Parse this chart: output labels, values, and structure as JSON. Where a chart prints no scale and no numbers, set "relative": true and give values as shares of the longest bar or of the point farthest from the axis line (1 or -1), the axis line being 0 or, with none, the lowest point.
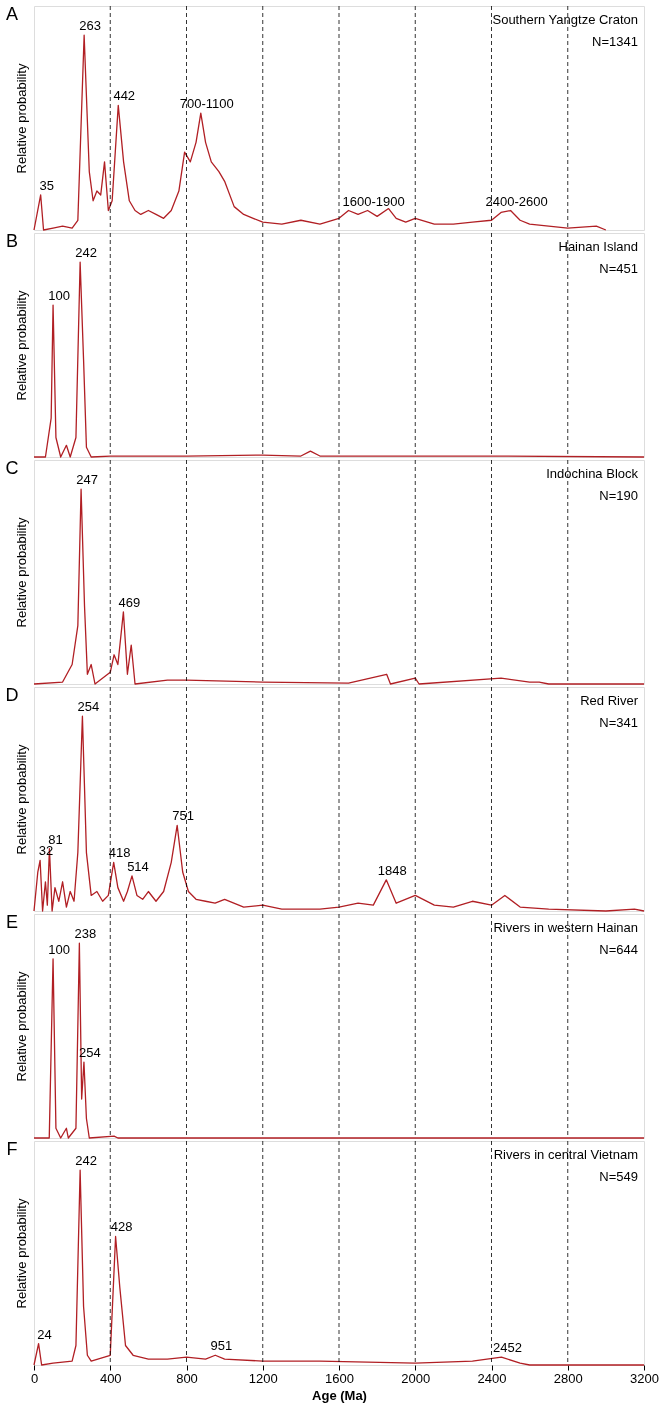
{
  "chart_data": [
    {
      "type": "line",
      "title": "A",
      "ylabel": "Relative probability",
      "relative": true,
      "tick_labels": false,
      "xlim": [
        0,
        3200
      ],
      "x": [
        0,
        35,
        50,
        100,
        150,
        200,
        230,
        263,
        290,
        310,
        330,
        350,
        370,
        390,
        410,
        442,
        470,
        500,
        530,
        560,
        600,
        640,
        680,
        720,
        760,
        790,
        820,
        850,
        875,
        900,
        930,
        970,
        1000,
        1050,
        1100,
        1150,
        1200,
        1300,
        1400,
        1500,
        1600,
        1650,
        1700,
        1750,
        1800,
        1860,
        1900,
        1950,
        2000,
        2100,
        2200,
        2300,
        2400,
        2450,
        2500,
        2550,
        2600,
        2700,
        2800,
        2950,
        3000
      ],
      "series": [
        {
          "color": "#b11f24",
          "values": [
            0,
            0.18,
            0,
            0.01,
            0.02,
            0.01,
            0.05,
            1,
            0.3,
            0.15,
            0.2,
            0.18,
            0.35,
            0.1,
            0.15,
            0.64,
            0.35,
            0.15,
            0.1,
            0.08,
            0.1,
            0.08,
            0.06,
            0.1,
            0.2,
            0.4,
            0.35,
            0.45,
            0.6,
            0.45,
            0.35,
            0.3,
            0.25,
            0.12,
            0.08,
            0.06,
            0.04,
            0.03,
            0.05,
            0.03,
            0.06,
            0.1,
            0.08,
            0.1,
            0.07,
            0.11,
            0.06,
            0.04,
            0.06,
            0.03,
            0.03,
            0.04,
            0.05,
            0.09,
            0.1,
            0.05,
            0.03,
            0.02,
            0.01,
            0.02,
            0
          ]
        }
      ],
      "ref_lines": [
        {
          "axis": "x",
          "value": 400,
          "line_style": "dashed",
          "color": "#000000"
        },
        {
          "axis": "x",
          "value": 800,
          "line_style": "dashed",
          "color": "#000000"
        },
        {
          "axis": "x",
          "value": 1200,
          "line_style": "dashed",
          "color": "#000000"
        },
        {
          "axis": "x",
          "value": 1600,
          "line_style": "dashed",
          "color": "#000000"
        },
        {
          "axis": "x",
          "value": 2000,
          "line_style": "dashed",
          "color": "#000000"
        },
        {
          "axis": "x",
          "value": 2400,
          "line_style": "dashed",
          "color": "#000000"
        },
        {
          "axis": "x",
          "value": 2800,
          "line_style": "dashed",
          "color": "#000000"
        }
      ],
      "annotations": [
        {
          "text": "35",
          "x": 35,
          "y": 0.18
        },
        {
          "text": "263",
          "x": 263,
          "y": 1
        },
        {
          "text": "442",
          "x": 442,
          "y": 0.64
        },
        {
          "text": "700-1100",
          "x": 875,
          "y": 0.6
        },
        {
          "text": "1600-1900",
          "x": 1750,
          "y": 0.1
        },
        {
          "text": "2400-2600",
          "x": 2500,
          "y": 0.1
        },
        "Southern Yangtze Craton",
        "N=1341"
      ]
    },
    {
      "type": "line",
      "title": "B",
      "ylabel": "Relative probability",
      "relative": true,
      "tick_labels": false,
      "xlim": [
        0,
        3200
      ],
      "x": [
        0,
        60,
        90,
        100,
        115,
        140,
        170,
        190,
        220,
        242,
        260,
        275,
        300,
        400,
        800,
        1200,
        1400,
        1450,
        1500,
        1700,
        2000,
        2400,
        3200
      ],
      "series": [
        {
          "color": "#b11f24",
          "values": [
            0,
            0,
            0.2,
            0.78,
            0.1,
            0,
            0.06,
            0,
            0.1,
            1,
            0.5,
            0.05,
            0,
            0.005,
            0.005,
            0.01,
            0.005,
            0.03,
            0.005,
            0.005,
            0.005,
            0.005,
            0
          ]
        }
      ],
      "ref_lines": [
        {
          "axis": "x",
          "value": 400,
          "line_style": "dashed",
          "color": "#000000"
        },
        {
          "axis": "x",
          "value": 800,
          "line_style": "dashed",
          "color": "#000000"
        },
        {
          "axis": "x",
          "value": 1200,
          "line_style": "dashed",
          "color": "#000000"
        },
        {
          "axis": "x",
          "value": 1600,
          "line_style": "dashed",
          "color": "#000000"
        },
        {
          "axis": "x",
          "value": 2000,
          "line_style": "dashed",
          "color": "#000000"
        },
        {
          "axis": "x",
          "value": 2400,
          "line_style": "dashed",
          "color": "#000000"
        },
        {
          "axis": "x",
          "value": 2800,
          "line_style": "dashed",
          "color": "#000000"
        }
      ],
      "annotations": [
        {
          "text": "100",
          "x": 100,
          "y": 0.78
        },
        {
          "text": "242",
          "x": 242,
          "y": 1
        },
        "Hainan Island",
        "N=451"
      ]
    },
    {
      "type": "line",
      "title": "C",
      "ylabel": "Relative probability",
      "relative": true,
      "tick_labels": false,
      "xlim": [
        0,
        3200
      ],
      "x": [
        0,
        150,
        200,
        230,
        247,
        265,
        280,
        300,
        320,
        400,
        420,
        440,
        469,
        490,
        510,
        530,
        700,
        800,
        1200,
        1650,
        1850,
        1870,
        2000,
        2020,
        2450,
        2600,
        2650,
        2700,
        3200
      ],
      "series": [
        {
          "color": "#b11f24",
          "values": [
            0,
            0.01,
            0.1,
            0.3,
            1,
            0.4,
            0.05,
            0.1,
            0,
            0.06,
            0.15,
            0.1,
            0.37,
            0.05,
            0.2,
            0,
            0.02,
            0.02,
            0.01,
            0.005,
            0.05,
            0,
            0.03,
            0,
            0.03,
            0.01,
            0.01,
            0,
            0
          ]
        }
      ],
      "ref_lines": [
        {
          "axis": "x",
          "value": 400,
          "line_style": "dashed",
          "color": "#000000"
        },
        {
          "axis": "x",
          "value": 800,
          "line_style": "dashed",
          "color": "#000000"
        },
        {
          "axis": "x",
          "value": 1200,
          "line_style": "dashed",
          "color": "#000000"
        },
        {
          "axis": "x",
          "value": 1600,
          "line_style": "dashed",
          "color": "#000000"
        },
        {
          "axis": "x",
          "value": 2000,
          "line_style": "dashed",
          "color": "#000000"
        },
        {
          "axis": "x",
          "value": 2400,
          "line_style": "dashed",
          "color": "#000000"
        },
        {
          "axis": "x",
          "value": 2800,
          "line_style": "dashed",
          "color": "#000000"
        }
      ],
      "annotations": [
        {
          "text": "247",
          "x": 247,
          "y": 1
        },
        {
          "text": "469",
          "x": 469,
          "y": 0.37
        },
        "Indochina Block",
        "N=190"
      ]
    },
    {
      "type": "line",
      "title": "D",
      "ylabel": "Relative probability",
      "relative": true,
      "tick_labels": false,
      "xlim": [
        0,
        3200
      ],
      "x": [
        0,
        20,
        32,
        45,
        60,
        70,
        81,
        95,
        110,
        130,
        150,
        170,
        190,
        210,
        230,
        254,
        275,
        300,
        330,
        360,
        390,
        418,
        440,
        470,
        490,
        514,
        540,
        570,
        600,
        640,
        680,
        720,
        751,
        780,
        810,
        850,
        900,
        950,
        1000,
        1100,
        1200,
        1300,
        1500,
        1600,
        1700,
        1780,
        1848,
        1900,
        2000,
        2100,
        2200,
        2300,
        2400,
        2470,
        2550,
        2700,
        3000,
        3150,
        3200
      ],
      "series": [
        {
          "color": "#b11f24",
          "values": [
            0,
            0.2,
            0.26,
            0,
            0.15,
            0.03,
            0.32,
            0,
            0.12,
            0.05,
            0.15,
            0.02,
            0.1,
            0.05,
            0.3,
            1,
            0.3,
            0.08,
            0.1,
            0.05,
            0.08,
            0.25,
            0.12,
            0.05,
            0.1,
            0.18,
            0.08,
            0.06,
            0.1,
            0.05,
            0.1,
            0.25,
            0.44,
            0.2,
            0.1,
            0.06,
            0.05,
            0.04,
            0.06,
            0.02,
            0.03,
            0.01,
            0.01,
            0.02,
            0.04,
            0.03,
            0.16,
            0.04,
            0.08,
            0.03,
            0.02,
            0.05,
            0.03,
            0.08,
            0.02,
            0.01,
            0,
            0.01,
            0
          ]
        }
      ],
      "ref_lines": [
        {
          "axis": "x",
          "value": 400,
          "line_style": "dashed",
          "color": "#000000"
        },
        {
          "axis": "x",
          "value": 800,
          "line_style": "dashed",
          "color": "#000000"
        },
        {
          "axis": "x",
          "value": 1200,
          "line_style": "dashed",
          "color": "#000000"
        },
        {
          "axis": "x",
          "value": 1600,
          "line_style": "dashed",
          "color": "#000000"
        },
        {
          "axis": "x",
          "value": 2000,
          "line_style": "dashed",
          "color": "#000000"
        },
        {
          "axis": "x",
          "value": 2400,
          "line_style": "dashed",
          "color": "#000000"
        },
        {
          "axis": "x",
          "value": 2800,
          "line_style": "dashed",
          "color": "#000000"
        }
      ],
      "annotations": [
        {
          "text": "32",
          "x": 32,
          "y": 0.26
        },
        {
          "text": "81",
          "x": 81,
          "y": 0.32
        },
        {
          "text": "254",
          "x": 254,
          "y": 1
        },
        {
          "text": "418",
          "x": 418,
          "y": 0.25
        },
        {
          "text": "514",
          "x": 514,
          "y": 0.18
        },
        {
          "text": "751",
          "x": 751,
          "y": 0.44
        },
        {
          "text": "1848",
          "x": 1848,
          "y": 0.16
        },
        "Red River",
        "N=341"
      ]
    },
    {
      "type": "line",
      "title": "E",
      "ylabel": "Relative probability",
      "relative": true,
      "tick_labels": false,
      "xlim": [
        0,
        3200
      ],
      "x": [
        0,
        80,
        100,
        115,
        140,
        170,
        180,
        220,
        238,
        250,
        262,
        275,
        290,
        420,
        440,
        3200
      ],
      "series": [
        {
          "color": "#b11f24",
          "values": [
            0,
            0,
            0.92,
            0.05,
            0,
            0.05,
            0,
            0.05,
            1,
            0.2,
            0.39,
            0.1,
            0,
            0.01,
            0,
            0
          ]
        }
      ],
      "ref_lines": [
        {
          "axis": "x",
          "value": 400,
          "line_style": "dashed",
          "color": "#000000"
        },
        {
          "axis": "x",
          "value": 800,
          "line_style": "dashed",
          "color": "#000000"
        },
        {
          "axis": "x",
          "value": 1200,
          "line_style": "dashed",
          "color": "#000000"
        },
        {
          "axis": "x",
          "value": 1600,
          "line_style": "dashed",
          "color": "#000000"
        },
        {
          "axis": "x",
          "value": 2000,
          "line_style": "dashed",
          "color": "#000000"
        },
        {
          "axis": "x",
          "value": 2400,
          "line_style": "dashed",
          "color": "#000000"
        },
        {
          "axis": "x",
          "value": 2800,
          "line_style": "dashed",
          "color": "#000000"
        }
      ],
      "annotations": [
        {
          "text": "100",
          "x": 100,
          "y": 0.92
        },
        {
          "text": "238",
          "x": 238,
          "y": 1
        },
        {
          "text": "254",
          "x": 262,
          "y": 0.39
        },
        "Rivers in western Hainan",
        "N=644"
      ]
    },
    {
      "type": "line",
      "title": "F",
      "ylabel": "Relative probability",
      "xlabel": "Age (Ma)",
      "relative": true,
      "tick_labels": "x",
      "xlim": [
        0,
        3200
      ],
      "xticks": [
        0,
        400,
        800,
        1200,
        1600,
        2000,
        2400,
        2800,
        3200
      ],
      "x": [
        0,
        24,
        40,
        100,
        200,
        220,
        242,
        260,
        280,
        300,
        400,
        428,
        450,
        480,
        520,
        600,
        700,
        800,
        900,
        951,
        1000,
        1200,
        1500,
        2000,
        2300,
        2452,
        2550,
        2600,
        3200
      ],
      "series": [
        {
          "color": "#b11f24",
          "values": [
            0,
            0.11,
            0,
            0.01,
            0.02,
            0.1,
            1,
            0.3,
            0.05,
            0.02,
            0.05,
            0.66,
            0.4,
            0.1,
            0.05,
            0.03,
            0.03,
            0.04,
            0.03,
            0.05,
            0.03,
            0.02,
            0.02,
            0.01,
            0.02,
            0.04,
            0.01,
            0,
            0
          ]
        }
      ],
      "ref_lines": [
        {
          "axis": "x",
          "value": 400,
          "line_style": "dashed",
          "color": "#000000"
        },
        {
          "axis": "x",
          "value": 800,
          "line_style": "dashed",
          "color": "#000000"
        },
        {
          "axis": "x",
          "value": 1200,
          "line_style": "dashed",
          "color": "#000000"
        },
        {
          "axis": "x",
          "value": 1600,
          "line_style": "dashed",
          "color": "#000000"
        },
        {
          "axis": "x",
          "value": 2000,
          "line_style": "dashed",
          "color": "#000000"
        },
        {
          "axis": "x",
          "value": 2400,
          "line_style": "dashed",
          "color": "#000000"
        },
        {
          "axis": "x",
          "value": 2800,
          "line_style": "dashed",
          "color": "#000000"
        }
      ],
      "annotations": [
        {
          "text": "24",
          "x": 24,
          "y": 0.11
        },
        {
          "text": "242",
          "x": 242,
          "y": 1
        },
        {
          "text": "428",
          "x": 428,
          "y": 0.66
        },
        {
          "text": "951",
          "x": 951,
          "y": 0.05
        },
        {
          "text": "2452",
          "x": 2452,
          "y": 0.04
        },
        "Rivers in central Vietnam",
        "N=549"
      ]
    }
  ]
}
